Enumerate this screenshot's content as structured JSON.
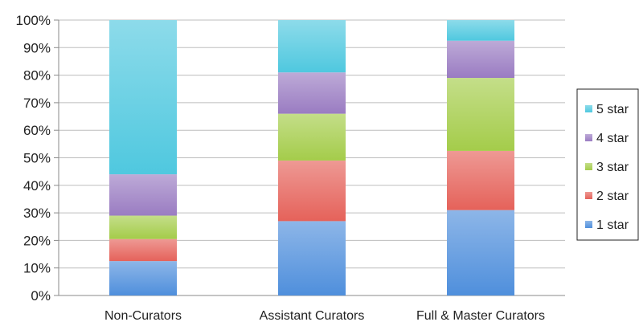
{
  "chart_data": {
    "type": "bar",
    "stacked": true,
    "normalized": true,
    "categories": [
      "Non-Curators",
      "Assistant Curators",
      "Full & Master Curators"
    ],
    "series": [
      {
        "name": "1 star",
        "color": "#4f8fdc",
        "values": [
          12.5,
          27,
          31
        ]
      },
      {
        "name": "2 star",
        "color": "#e5625a",
        "values": [
          8,
          22,
          21.5
        ]
      },
      {
        "name": "3 star",
        "color": "#a4cc4a",
        "values": [
          8.5,
          17,
          26.5
        ]
      },
      {
        "name": "4 star",
        "color": "#9a7cc2",
        "values": [
          15,
          15,
          13.5
        ]
      },
      {
        "name": "5 star",
        "color": "#4fc8df",
        "values": [
          56,
          19,
          7.5
        ]
      }
    ],
    "yticks": [
      "0%",
      "10%",
      "20%",
      "30%",
      "40%",
      "50%",
      "60%",
      "70%",
      "80%",
      "90%",
      "100%"
    ],
    "ylim": [
      0,
      100
    ],
    "grid": true,
    "legend_position": "right",
    "title": "",
    "xlabel": "",
    "ylabel": ""
  }
}
